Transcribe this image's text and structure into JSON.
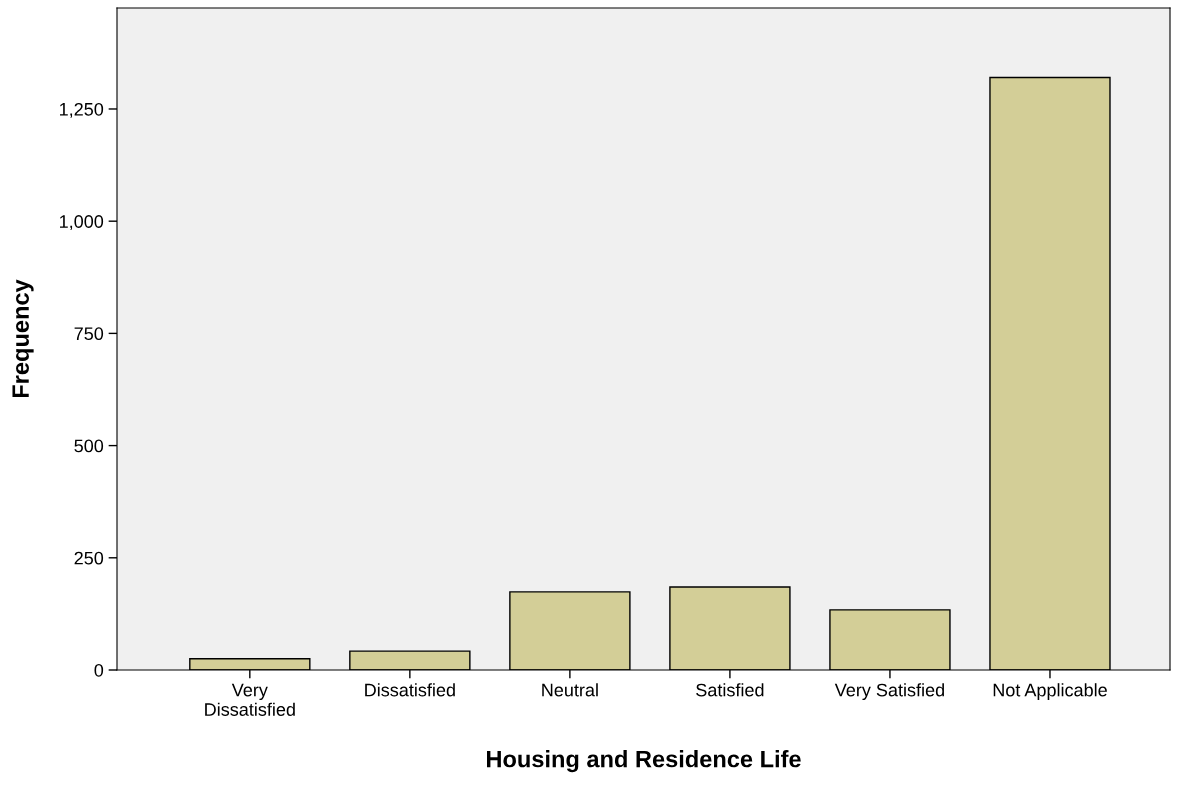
{
  "chart_data": {
    "type": "bar",
    "xlabel": "Housing and Residence Life",
    "ylabel": "Frequency",
    "categories": [
      "Very\nDissatisfied",
      "Dissatisfied",
      "Neutral",
      "Satisfied",
      "Very Satisfied",
      "Not Applicable"
    ],
    "values": [
      25,
      42,
      174,
      185,
      134,
      1320
    ],
    "color": "#d3ce97",
    "ylim": [
      0,
      1475
    ],
    "yticks": [
      0,
      250,
      500,
      750,
      {
        "value": 1000,
        "label": "1,000"
      },
      {
        "value": 1250,
        "label": "1,250"
      }
    ],
    "grid": false,
    "legend": false
  }
}
